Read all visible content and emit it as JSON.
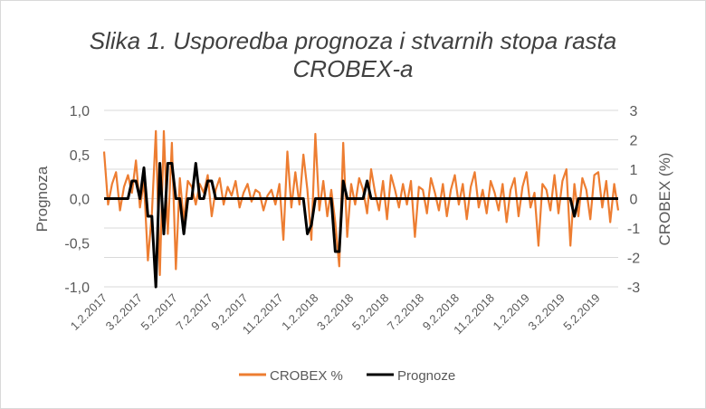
{
  "chart_data": {
    "type": "line",
    "title_lines": [
      "Slika 1. Usporedba prognoza i stvarnih stopa rasta",
      "CROBEX-a"
    ],
    "ylabel_left": "Prognoza",
    "ylabel_right": "CROBEX (%)",
    "ylim_left": [
      -1,
      1
    ],
    "ylim_right": [
      -3,
      3
    ],
    "yticks_left": [
      "1,0",
      "0,5",
      "0,0",
      "-0,5",
      "-1,0"
    ],
    "yticks_right": [
      "3",
      "2",
      "1",
      "0",
      "-1",
      "-2",
      "-3"
    ],
    "xtick_labels": [
      "1.2.2017",
      "3.2.2017",
      "5.2.2017",
      "7.2.2017",
      "9.2.2017",
      "11.2.2017",
      "1.2.2018",
      "3.2.2018",
      "5.2.2018",
      "7.2.2018",
      "9.2.2018",
      "11.2.2018",
      "1.2.2019",
      "3.2.2019",
      "5.2.2019"
    ],
    "grid": true,
    "legend_position": "bottom",
    "series": [
      {
        "name": "CROBEX %",
        "axis": "right",
        "color": "#ed7d31",
        "values": [
          1.6,
          -0.2,
          0.5,
          0.9,
          -0.4,
          0.4,
          0.8,
          0.2,
          1.3,
          -0.3,
          0.6,
          -2.1,
          -0.5,
          2.3,
          -2.6,
          2.3,
          -1.2,
          1.9,
          -2.4,
          0.7,
          -0.8,
          0.6,
          0.4,
          -0.2,
          0.5,
          0.2,
          0.8,
          -0.6,
          0.3,
          0.7,
          -0.2,
          0.4,
          0.1,
          0.6,
          -0.3,
          0.2,
          0.5,
          -0.1,
          0.3,
          0.2,
          -0.4,
          0.1,
          0.3,
          -0.2,
          0.5,
          -1.4,
          1.6,
          -0.3,
          0.9,
          -0.2,
          1.5,
          0.3,
          -1.4,
          2.2,
          -0.4,
          0.6,
          -0.6,
          0.3,
          -0.8,
          -2.3,
          1.9,
          -1.3,
          0.5,
          -0.2,
          0.7,
          0.3,
          -0.5,
          1.0,
          0.2,
          -0.4,
          0.6,
          -0.7,
          0.8,
          0.3,
          -0.3,
          0.5,
          -0.2,
          0.6,
          -1.3,
          0.4,
          0.3,
          -0.5,
          0.7,
          0.2,
          -0.4,
          0.5,
          -0.6,
          0.3,
          0.8,
          -0.2,
          0.5,
          -0.7,
          0.4,
          0.9,
          -0.3,
          0.3,
          -0.5,
          0.6,
          0.2,
          -0.4,
          0.5,
          -0.8,
          0.3,
          0.7,
          -0.6,
          0.4,
          0.9,
          -0.3,
          0.2,
          -1.6,
          0.5,
          0.3,
          -0.4,
          0.8,
          -0.5,
          0.6,
          1.0,
          -1.6,
          0.5,
          -0.6,
          0.7,
          0.3,
          -0.7,
          0.8,
          0.9,
          -0.3,
          0.6,
          -0.8,
          0.5,
          -0.4
        ]
      },
      {
        "name": "Prognoze",
        "axis": "left",
        "color": "#000000",
        "values": [
          0,
          0,
          0,
          0,
          0,
          0,
          0,
          0.2,
          0.2,
          0,
          0.35,
          -0.2,
          -0.2,
          -1.0,
          0.4,
          -0.4,
          0.4,
          0.4,
          0,
          0,
          -0.4,
          0,
          0,
          0.4,
          0,
          0,
          0.2,
          0.2,
          0,
          0,
          0,
          0,
          0,
          0,
          0,
          0,
          0,
          0,
          0,
          0,
          0,
          0,
          0,
          0,
          0,
          0,
          0,
          0,
          0,
          0,
          0,
          -0.4,
          -0.3,
          0,
          0,
          0,
          0,
          0,
          -0.6,
          -0.6,
          0.2,
          0,
          0,
          0,
          0,
          0,
          0.2,
          0,
          0,
          0,
          0,
          0,
          0,
          0,
          0,
          0,
          0,
          0,
          0,
          0,
          0,
          0,
          0,
          0,
          0,
          0,
          0,
          0,
          0,
          0,
          0,
          0,
          0,
          0,
          0,
          0,
          0,
          0,
          0,
          0,
          0,
          0,
          0,
          0,
          0,
          0,
          0,
          0,
          0,
          0,
          0,
          0,
          0,
          0,
          0,
          0,
          0,
          0,
          -0.2,
          0,
          0,
          0,
          0,
          0,
          0,
          0,
          0,
          0,
          0,
          0
        ]
      }
    ]
  }
}
